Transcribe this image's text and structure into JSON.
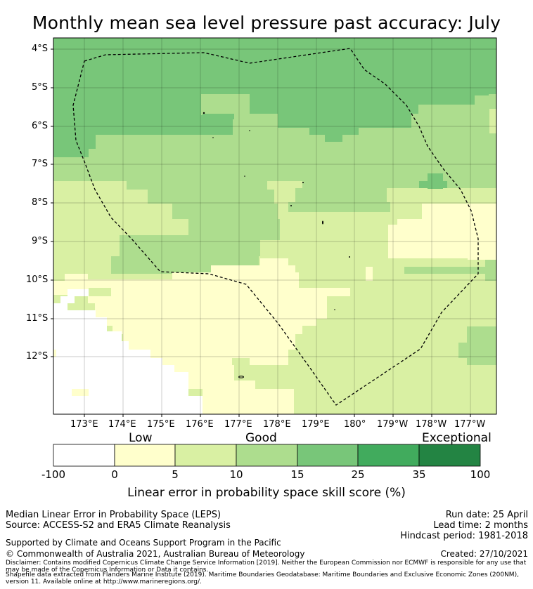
{
  "title": "Monthly mean sea level pressure past accuracy: July",
  "map": {
    "lat_labels": [
      "4°S",
      "5°S",
      "6°S",
      "7°S",
      "8°S",
      "9°S",
      "10°S",
      "11°S",
      "12°S"
    ],
    "lon_labels": [
      "173°E",
      "174°E",
      "175°E",
      "176°E",
      "177°E",
      "178°E",
      "179°E",
      "180°",
      "179°W",
      "178°W",
      "177°W"
    ],
    "category_colors": [
      "#ffffff",
      "#ffffcc",
      "#d9f0a3",
      "#addd8e",
      "#78c679",
      "#41ab5d",
      "#238443"
    ]
  },
  "colorbar": {
    "words": [
      "Low",
      "Good",
      "Exceptional"
    ],
    "ticks": [
      "-100",
      "0",
      "5",
      "10",
      "15",
      "25",
      "35",
      "100"
    ],
    "label": "Linear error in probability space skill score (%)"
  },
  "footer": {
    "left1": "Median Linear Error in Probability Space (LEPS)",
    "left2": "Source: ACCESS-S2 and ERA5 Climate Reanalysis",
    "right1": "Run date: 25 April",
    "right2": "Lead time: 2 months",
    "right3": "Hindcast period: 1981-2018",
    "supported": "Supported by Climate and Oceans Support Program in the Pacific",
    "copyright": "© Commonwealth of Australia 2021, Australian Bureau of Meteorology",
    "created": "Created: 27/10/2021",
    "disclaimer": "Disclaimer: Contains modified Copernicus Climate Change Service Information [2019]. Neither the European Commission nor ECMWF is responsible for any use that may be made of the Copernicus Information or Data it contains.",
    "shapefile": "Shapefile data extracted from Flanders Marine Institute (2019). Maritime Boundaries Geodatabase: Maritime Boundaries and Exclusive Economic Zones (200NM), version 11. Available online at http://www.marineregions.org/."
  }
}
